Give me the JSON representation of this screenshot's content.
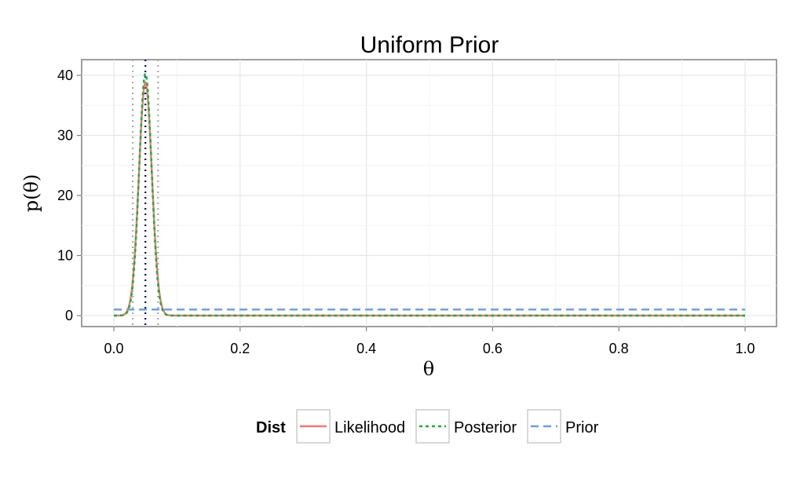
{
  "chart_data": {
    "type": "line",
    "title": "Uniform Prior",
    "xlabel": "θ",
    "ylabel": "p(θ)",
    "xlim": [
      0.0,
      1.0
    ],
    "ylim": [
      0,
      40
    ],
    "x_ticks": [
      "0.0",
      "0.2",
      "0.4",
      "0.6",
      "0.8",
      "1.0"
    ],
    "y_ticks": [
      "0",
      "10",
      "20",
      "30",
      "40"
    ],
    "grid": true,
    "legend_title": "Dist",
    "legend_position": "bottom",
    "series": [
      {
        "name": "Likelihood",
        "color": "#F8766D",
        "dash": "solid",
        "mode": 0.05,
        "sd": 0.0103,
        "peak": 38.8
      },
      {
        "name": "Posterior",
        "color": "#00BA38",
        "dash": "dotted",
        "mode": 0.05,
        "sd": 0.0099,
        "peak": 40.3
      },
      {
        "name": "Prior",
        "color": "#619CFF",
        "dash": "dashed",
        "constant": 1.0
      }
    ],
    "vlines": [
      {
        "x": 0.05,
        "color": "#00008B",
        "dash": "dotted"
      },
      {
        "x": 0.03,
        "color": "#AAAAAA",
        "dash": "dotted"
      },
      {
        "x": 0.07,
        "color": "#AAAAAA",
        "dash": "dotted"
      }
    ]
  }
}
